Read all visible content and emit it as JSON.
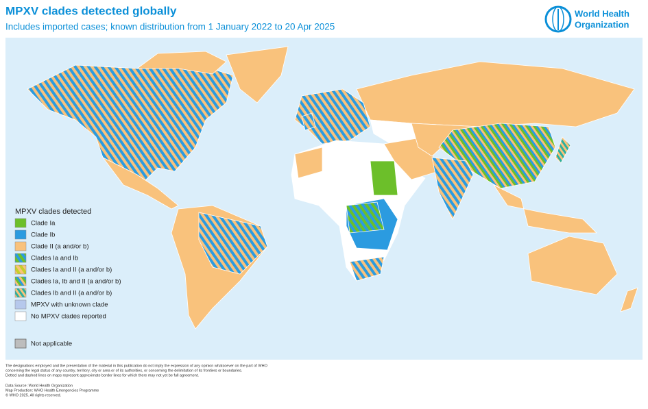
{
  "header": {
    "title": "MPXV clades detected globally",
    "subtitle": "Includes imported cases; known distribution from 1 January 2022 to 20 Apr 2025",
    "logo": [
      "World Health",
      "Organization"
    ]
  },
  "legend": {
    "title": "MPXV clades detected",
    "items": [
      "Clade Ia",
      "Clade Ib",
      "Clade II (a and/or b)",
      "Clades Ia and Ib",
      "Clades Ia and II (a and/or b)",
      "Clades Ia, Ib and II (a and/or b)",
      "Clades Ib and II (a and/or b)",
      "MPXV with unknown clade",
      "No MPXV clades reported"
    ],
    "not_applicable": "Not applicable"
  },
  "footer": {
    "disclaimer": [
      "The designations employed and the presentation of the material in this publication do not imply the expression of any opinion whatsoever on the part of WHO",
      "concerning the legal status of any country, territory, city or area or of its authorities, or concerning the delimitation of its frontiers or boundaries.",
      "Dotted and dashed lines on maps represent approximate border lines for which there may not yet be full agreement."
    ],
    "credits": [
      "Data Source: World Health Organization",
      "Map Production: WHO Health Emergencies Programme",
      "© WHO 2025. All rights reserved."
    ]
  }
}
